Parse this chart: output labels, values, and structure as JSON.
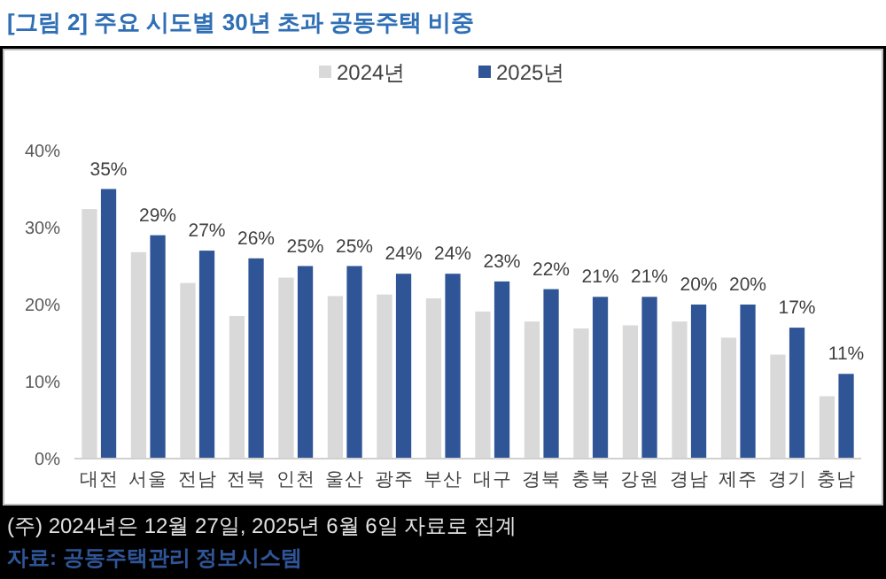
{
  "chart_data": {
    "type": "bar",
    "title": "[그림 2] 주요 시도별 30년 초과 공동주택 비중",
    "categories": [
      "대전",
      "서울",
      "전남",
      "전북",
      "인천",
      "울산",
      "광주",
      "부산",
      "대구",
      "경북",
      "충북",
      "강원",
      "경남",
      "제주",
      "경기",
      "충남"
    ],
    "series": [
      {
        "name": "2024년",
        "color": "#d9d9d9",
        "values": [
          32.4,
          26.8,
          22.8,
          18.5,
          23.5,
          21.1,
          21.3,
          20.8,
          19.1,
          17.8,
          16.9,
          17.3,
          17.8,
          15.7,
          13.5,
          8.1
        ]
      },
      {
        "name": "2025년",
        "color": "#2f5597",
        "values": [
          35,
          29,
          27,
          26,
          25,
          25,
          24,
          24,
          23,
          22,
          21,
          21,
          20,
          20,
          17,
          11
        ],
        "value_labels": [
          "35%",
          "29%",
          "27%",
          "26%",
          "25%",
          "25%",
          "24%",
          "24%",
          "23%",
          "22%",
          "21%",
          "21%",
          "20%",
          "20%",
          "17%",
          "11%"
        ]
      }
    ],
    "ylim": [
      0,
      40
    ],
    "yticks": [
      {
        "value": 0,
        "label": "0%"
      },
      {
        "value": 10,
        "label": "10%"
      },
      {
        "value": 20,
        "label": "20%"
      },
      {
        "value": 30,
        "label": "30%"
      },
      {
        "value": 40,
        "label": "40%"
      }
    ],
    "grid": false,
    "legend": "top",
    "annotations": [
      "(주) 2024년은 12월 27일, 2025년 6월 6일 자료로 집계",
      "자료: 공동주택관리 정보시스템"
    ]
  }
}
